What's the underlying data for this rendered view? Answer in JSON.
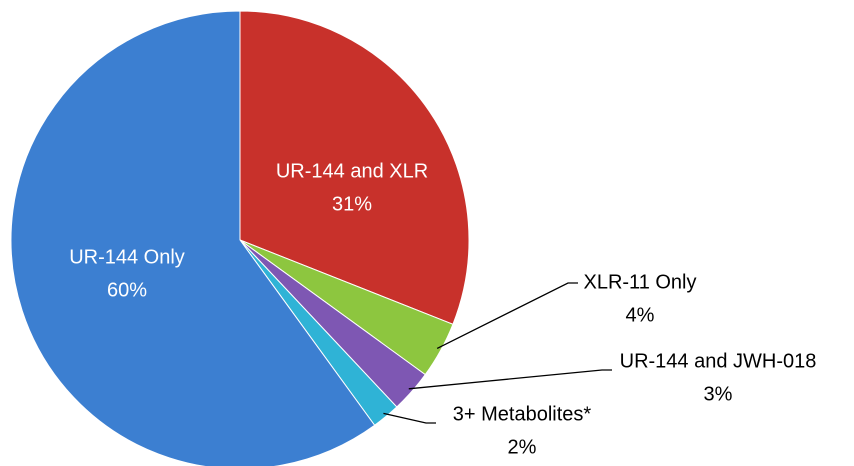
{
  "chart_data": {
    "type": "pie",
    "categories": [
      "UR-144 and XLR",
      "XLR-11 Only",
      "UR-144 and JWH-018",
      "3+ Metabolites*",
      "UR-144 Only"
    ],
    "values": [
      31,
      4,
      3,
      2,
      60
    ],
    "value_labels": [
      "31%",
      "4%",
      "3%",
      "2%",
      "60%"
    ],
    "colors": [
      "#c8312b",
      "#8dc63f",
      "#7e57b3",
      "#2fb3d6",
      "#3c7fd1"
    ]
  }
}
